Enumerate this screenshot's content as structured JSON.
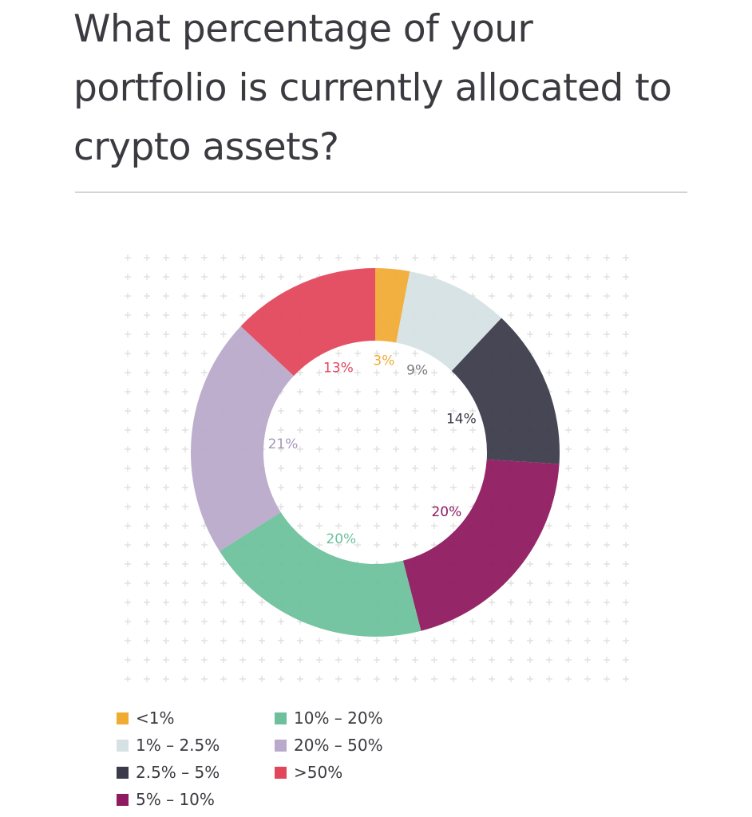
{
  "title": "What percentage of your portfolio is currently allocated to crypto assets?",
  "chart_data": {
    "type": "pie",
    "variant": "donut",
    "title": "What percentage of your portfolio is currently allocated to crypto assets?",
    "unit": "%",
    "start": "top",
    "direction": "clockwise",
    "legend_position": "bottom-left",
    "slices": [
      {
        "label": "<1%",
        "value": 3,
        "value_label": "3%",
        "color": "#f0ab33",
        "label_color": "#f0ab33"
      },
      {
        "label": "1% – 2.5%",
        "value": 9,
        "value_label": "9%",
        "color": "#d5e1e2",
        "label_color": "#7a7a82"
      },
      {
        "label": "2.5% – 5%",
        "value": 14,
        "value_label": "14%",
        "color": "#3a3a4a",
        "label_color": "#3a3a4a"
      },
      {
        "label": "5% – 10%",
        "value": 20,
        "value_label": "20%",
        "color": "#8e1a5f",
        "label_color": "#8e1a5f"
      },
      {
        "label": "10% – 20%",
        "value": 20,
        "value_label": "20%",
        "color": "#6cc09c",
        "label_color": "#6cc09c"
      },
      {
        "label": "20% – 50%",
        "value": 21,
        "value_label": "21%",
        "color": "#b9a9cb",
        "label_color": "#a596b8"
      },
      {
        "label": ">50%",
        "value": 13,
        "value_label": "13%",
        "color": "#e2465a",
        "label_color": "#e2465a"
      }
    ]
  }
}
